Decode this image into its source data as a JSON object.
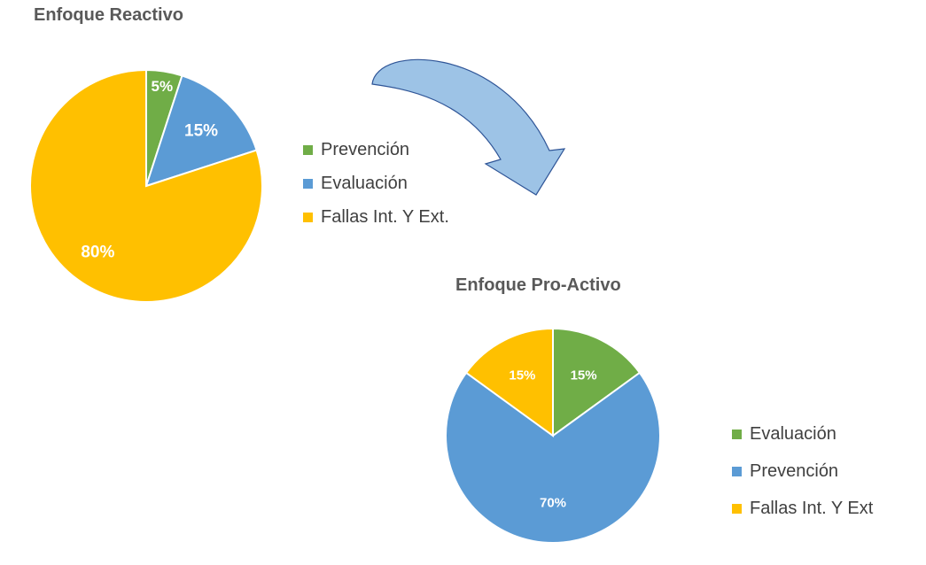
{
  "chart_data": [
    {
      "type": "pie",
      "title": "Enfoque Reactivo",
      "categories": [
        "Prevención",
        "Evaluación",
        "Fallas Int. Y Ext."
      ],
      "values": [
        5,
        15,
        80
      ],
      "data_labels": [
        "5%",
        "15%",
        "80%"
      ],
      "colors": [
        "#70AD47",
        "#5B9BD5",
        "#FFC000"
      ],
      "legend_position": "right"
    },
    {
      "type": "pie",
      "title": "Enfoque Pro-Activo",
      "categories": [
        "Evaluación",
        "Prevención",
        "Fallas Int. Y Ext"
      ],
      "values": [
        15,
        70,
        15
      ],
      "data_labels": [
        "15%",
        "70%",
        "15%"
      ],
      "colors": [
        "#70AD47",
        "#5B9BD5",
        "#FFC000"
      ],
      "legend_position": "right"
    }
  ],
  "decoration": {
    "arrow_color": "#9DC3E6",
    "arrow_stroke": "#2F5597",
    "label_color": "#ffffff"
  }
}
